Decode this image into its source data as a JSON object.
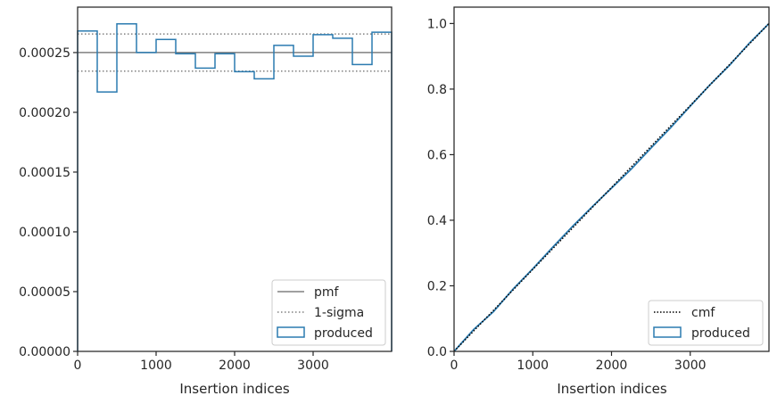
{
  "colors": {
    "produced": "#2b7bb0",
    "pmf": "#808080",
    "sigma": "#808080",
    "cmf": "#000000",
    "axes": "#262626"
  },
  "chart_data": [
    {
      "type": "histogram",
      "xlabel": "Insertion indices",
      "xlim": [
        0,
        4000
      ],
      "ylim": [
        0,
        0.000288
      ],
      "x_ticks": [
        0,
        1000,
        2000,
        3000
      ],
      "x_tick_labels": [
        "0",
        "1000",
        "2000",
        "3000"
      ],
      "y_ticks": [
        0,
        5e-05,
        0.0001,
        0.00015,
        0.0002,
        0.00025
      ],
      "y_tick_labels": [
        "0.00000",
        "0.00005",
        "0.00010",
        "0.00015",
        "0.00020",
        "0.00025"
      ],
      "bin_edges": [
        0,
        250,
        500,
        750,
        1000,
        1250,
        1500,
        1750,
        2000,
        2250,
        2500,
        2750,
        3000,
        3250,
        3500,
        3750,
        4000
      ],
      "values": [
        0.000268,
        0.000217,
        0.000274,
        0.00025,
        0.000261,
        0.000249,
        0.000237,
        0.000249,
        0.000234,
        0.000228,
        0.000256,
        0.000247,
        0.000265,
        0.000262,
        0.00024,
        0.000267
      ],
      "pmf": 0.00025,
      "sigma_band": [
        0.0002345,
        0.0002655
      ],
      "legend": {
        "position": "lower right",
        "entries": [
          "pmf",
          "1-sigma",
          "produced"
        ]
      }
    },
    {
      "type": "line",
      "xlabel": "Insertion indices",
      "xlim": [
        0,
        4000
      ],
      "ylim": [
        0,
        1.05
      ],
      "x_ticks": [
        0,
        1000,
        2000,
        3000
      ],
      "x_tick_labels": [
        "0",
        "1000",
        "2000",
        "3000"
      ],
      "y_ticks": [
        0,
        0.2,
        0.4,
        0.6,
        0.8,
        1.0
      ],
      "y_tick_labels": [
        "0.0",
        "0.2",
        "0.4",
        "0.6",
        "0.8",
        "1.0"
      ],
      "cmf": {
        "x": [
          0,
          4000
        ],
        "y": [
          0,
          1
        ]
      },
      "produced": {
        "x": [
          0,
          250,
          500,
          750,
          1000,
          1250,
          1500,
          1750,
          2000,
          2250,
          2500,
          2750,
          3000,
          3250,
          3500,
          3750,
          4000
        ],
        "y": [
          0,
          0.067,
          0.121,
          0.19,
          0.252,
          0.317,
          0.38,
          0.44,
          0.498,
          0.556,
          0.62,
          0.682,
          0.748,
          0.813,
          0.873,
          0.94,
          1.0
        ]
      },
      "legend": {
        "position": "lower right",
        "entries": [
          "cmf",
          "produced"
        ]
      }
    }
  ]
}
